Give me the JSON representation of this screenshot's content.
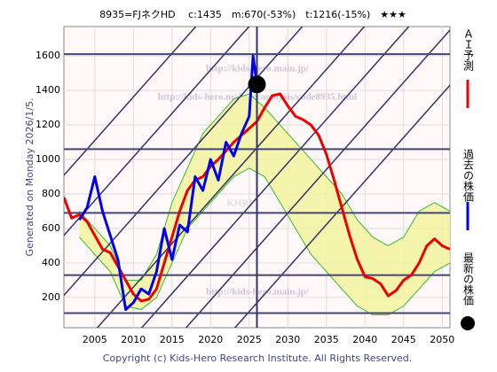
{
  "chart_data": {
    "type": "line",
    "title": "8935=FJネクHD　 c:1435　m:670(-53%)　t:1216(-15%)　★★★",
    "y_axis_label": "Generated on Monday 2026/1/5.",
    "footer": "Copyright (c) Kids-Hero Research Institute. All Rights Reserved.",
    "watermarks": [
      "http://kids-hero.main.jp/",
      "http://kids-hero.main.jp/analysis/code8935.html",
      "KHRI",
      "http://kids-hero.main.jp/"
    ],
    "xlim": [
      2001,
      2051
    ],
    "xticks": [
      2005,
      2010,
      2015,
      2020,
      2025,
      2030,
      2035,
      2040,
      2045,
      2050
    ],
    "ylim": [
      25,
      1770
    ],
    "yticks": [
      200,
      400,
      600,
      800,
      1000,
      1200,
      1400,
      1600
    ],
    "grid": true,
    "levels": [
      1610,
      1060,
      690,
      330,
      110
    ],
    "band": {
      "color": "#33bb33",
      "fill": "#f3f3a0",
      "x": [
        2003,
        2005,
        2007,
        2009,
        2011,
        2013,
        2015,
        2017,
        2019,
        2021,
        2023,
        2025,
        2027,
        2029,
        2031,
        2033,
        2035,
        2037,
        2039,
        2041,
        2043,
        2045,
        2047,
        2049,
        2051
      ],
      "upper": [
        700,
        600,
        500,
        300,
        300,
        450,
        750,
        950,
        1150,
        1250,
        1350,
        1380,
        1300,
        1200,
        1100,
        1000,
        900,
        800,
        650,
        550,
        500,
        550,
        700,
        750,
        700
      ],
      "lower": [
        550,
        450,
        350,
        150,
        130,
        200,
        400,
        600,
        700,
        800,
        900,
        950,
        900,
        750,
        600,
        450,
        350,
        250,
        150,
        100,
        100,
        150,
        250,
        350,
        400
      ]
    },
    "series": [
      {
        "name": "ＡＩ予測",
        "color": "#ee0000",
        "x": [
          2001,
          2002,
          2003,
          2004,
          2005,
          2006,
          2007,
          2008,
          2009,
          2010,
          2011,
          2012,
          2013,
          2014,
          2015,
          2016,
          2017,
          2018,
          2019,
          2020,
          2021,
          2022,
          2023,
          2024,
          2025,
          2026,
          2027,
          2028,
          2029,
          2030,
          2031,
          2032,
          2033,
          2034,
          2035,
          2036,
          2037,
          2038,
          2039,
          2040,
          2041,
          2042,
          2043,
          2044,
          2045,
          2046,
          2047,
          2048,
          2049,
          2050,
          2051
        ],
        "values": [
          780,
          660,
          680,
          640,
          560,
          480,
          460,
          380,
          300,
          220,
          180,
          190,
          250,
          400,
          550,
          700,
          820,
          880,
          900,
          960,
          1000,
          1050,
          1100,
          1140,
          1180,
          1220,
          1300,
          1370,
          1380,
          1310,
          1250,
          1230,
          1200,
          1140,
          1030,
          880,
          720,
          560,
          420,
          320,
          310,
          280,
          210,
          240,
          300,
          330,
          400,
          500,
          540,
          500,
          480
        ]
      },
      {
        "name": "過去の株価",
        "color": "#0000ee",
        "x": [
          2003,
          2004,
          2005,
          2006,
          2007,
          2008,
          2009,
          2010,
          2011,
          2012,
          2013,
          2014,
          2015,
          2016,
          2017,
          2018,
          2019,
          2020,
          2021,
          2022,
          2023,
          2024,
          2025,
          2025.5,
          2026
        ],
        "values": [
          650,
          720,
          900,
          700,
          560,
          420,
          130,
          170,
          250,
          220,
          350,
          600,
          420,
          620,
          580,
          900,
          820,
          1000,
          880,
          1100,
          1020,
          1150,
          1250,
          1600,
          1435
        ]
      }
    ],
    "latest": {
      "name": "最新の株価",
      "color": "#000000",
      "x": 2026,
      "y": 1435
    }
  }
}
